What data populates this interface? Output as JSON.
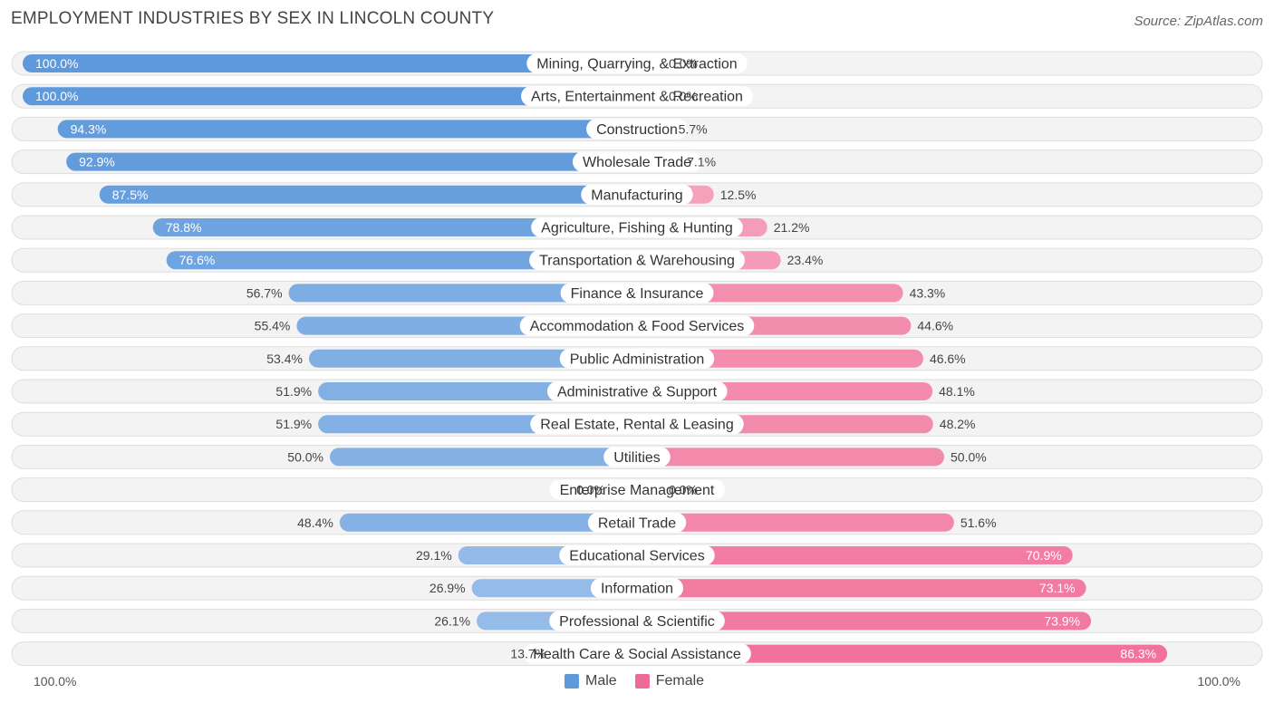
{
  "title": "EMPLOYMENT INDUSTRIES BY SEX IN LINCOLN COUNTY",
  "source": "Source: ZipAtlas.com",
  "colors": {
    "male": "#5e99dc",
    "male_light": "#a9c8ee",
    "female": "#f06a96",
    "female_light": "#f6a9c1"
  },
  "axis": {
    "left_label": "100.0%",
    "right_label": "100.0%"
  },
  "legend": {
    "male": "Male",
    "female": "Female"
  },
  "chart_data": {
    "type": "bar",
    "orientation": "horizontal-diverging",
    "title": "EMPLOYMENT INDUSTRIES BY SEX IN LINCOLN COUNTY",
    "xlim": [
      -100,
      100
    ],
    "categories": [
      "Mining, Quarrying, & Extraction",
      "Arts, Entertainment & Recreation",
      "Construction",
      "Wholesale Trade",
      "Manufacturing",
      "Agriculture, Fishing & Hunting",
      "Transportation & Warehousing",
      "Finance & Insurance",
      "Accommodation & Food Services",
      "Public Administration",
      "Administrative & Support",
      "Real Estate, Rental & Leasing",
      "Utilities",
      "Enterprise Management",
      "Retail Trade",
      "Educational Services",
      "Information",
      "Professional & Scientific",
      "Health Care & Social Assistance"
    ],
    "series": [
      {
        "name": "Male",
        "values": [
          100.0,
          100.0,
          94.3,
          92.9,
          87.5,
          78.8,
          76.6,
          56.7,
          55.4,
          53.4,
          51.9,
          51.9,
          50.0,
          0.0,
          48.4,
          29.1,
          26.9,
          26.1,
          13.7
        ],
        "labels": [
          "100.0%",
          "100.0%",
          "94.3%",
          "92.9%",
          "87.5%",
          "78.8%",
          "76.6%",
          "56.7%",
          "55.4%",
          "53.4%",
          "51.9%",
          "51.9%",
          "50.0%",
          "0.0%",
          "48.4%",
          "29.1%",
          "26.9%",
          "26.1%",
          "13.7%"
        ]
      },
      {
        "name": "Female",
        "values": [
          0.0,
          0.0,
          5.7,
          7.1,
          12.5,
          21.2,
          23.4,
          43.3,
          44.6,
          46.6,
          48.1,
          48.2,
          50.0,
          0.0,
          51.6,
          70.9,
          73.1,
          73.9,
          86.3
        ],
        "labels": [
          "0.0%",
          "0.0%",
          "5.7%",
          "7.1%",
          "12.5%",
          "21.2%",
          "23.4%",
          "43.3%",
          "44.6%",
          "46.6%",
          "48.1%",
          "48.2%",
          "50.0%",
          "0.0%",
          "51.6%",
          "70.9%",
          "73.1%",
          "73.9%",
          "86.3%"
        ]
      }
    ]
  }
}
